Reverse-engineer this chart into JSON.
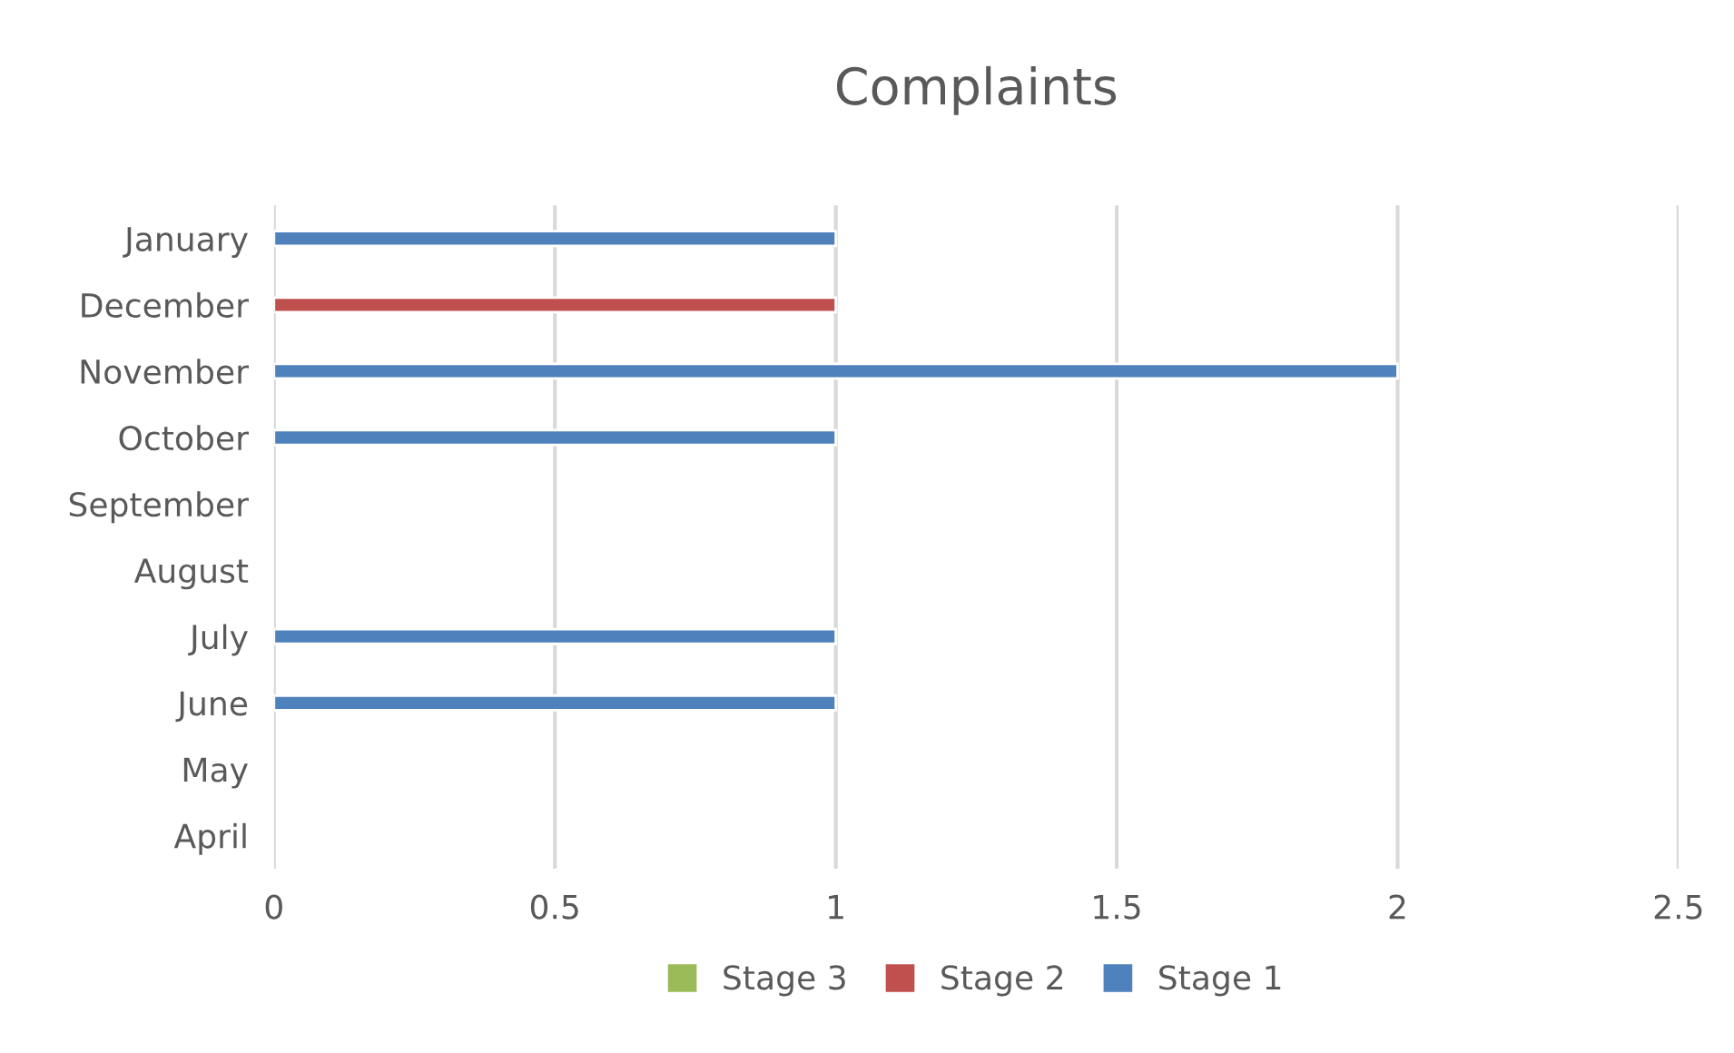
{
  "chart_data": {
    "type": "bar",
    "title": "Complaints",
    "orientation": "horizontal",
    "categories": [
      "January",
      "December",
      "November",
      "October",
      "September",
      "August",
      "July",
      "June",
      "May",
      "April"
    ],
    "series": [
      {
        "name": "Stage 1",
        "color": "#4f81bd",
        "values": [
          1,
          null,
          2,
          1,
          null,
          null,
          1,
          1,
          null,
          null
        ]
      },
      {
        "name": "Stage 2",
        "color": "#c0504d",
        "values": [
          null,
          1,
          null,
          null,
          null,
          null,
          null,
          null,
          null,
          null
        ]
      },
      {
        "name": "Stage 3",
        "color": "#9bbb59",
        "values": [
          null,
          null,
          null,
          null,
          null,
          null,
          null,
          null,
          null,
          null
        ]
      }
    ],
    "xlim": [
      0,
      2.5
    ],
    "xticks": [
      0,
      {
        "value": 0.5,
        "label": "0.5"
      },
      1,
      {
        "value": 1.5,
        "label": "1.5"
      },
      2,
      {
        "value": 2.5,
        "label": "2.5"
      }
    ],
    "grid": "x",
    "legend": "bottom"
  }
}
